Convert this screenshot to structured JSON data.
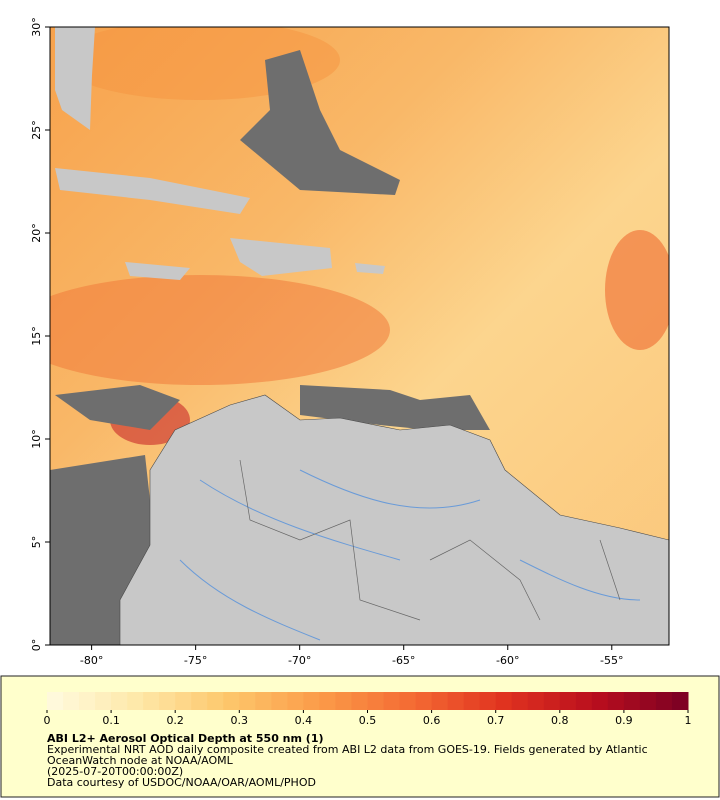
{
  "map": {
    "xlim": [
      -82,
      -52.25
    ],
    "ylim": [
      0,
      30
    ],
    "xticks": [
      {
        "value": -80,
        "label": "-80°"
      },
      {
        "value": -75,
        "label": "-75°"
      },
      {
        "value": -70,
        "label": "-70°"
      },
      {
        "value": -65,
        "label": "-65°"
      },
      {
        "value": -60,
        "label": "-60°"
      },
      {
        "value": -55,
        "label": "-55°"
      }
    ],
    "yticks": [
      {
        "value": 0,
        "label": "0°"
      },
      {
        "value": 5,
        "label": "5°"
      },
      {
        "value": 10,
        "label": "10°"
      },
      {
        "value": 15,
        "label": "15°"
      },
      {
        "value": 20,
        "label": "20°"
      },
      {
        "value": 25,
        "label": "25°"
      },
      {
        "value": 30,
        "label": "30°"
      }
    ]
  },
  "colorbar": {
    "lim": [
      0,
      1
    ],
    "ticks": [
      0,
      0.1,
      0.2,
      0.3,
      0.4,
      0.5,
      0.6,
      0.7,
      0.8,
      0.9,
      1
    ],
    "colors": [
      "#fffbe0",
      "#fee8a8",
      "#fdc66a",
      "#fb9a48",
      "#f46a33",
      "#e0321f",
      "#b80e1e",
      "#7a0024"
    ]
  },
  "caption": {
    "title": "ABI L2+ Aerosol Optical Depth at 550 nm (1)",
    "lines": [
      "Experimental NRT AOD daily composite created from ABI L2 data from GOES-19. Fields generated by Atlantic",
      "OceanWatch node at NOAA/AOML",
      "(2025-07-20T00:00:00Z)",
      "Data courtesy of USDOC/NOAA/OAR/AOML/PHOD"
    ]
  }
}
